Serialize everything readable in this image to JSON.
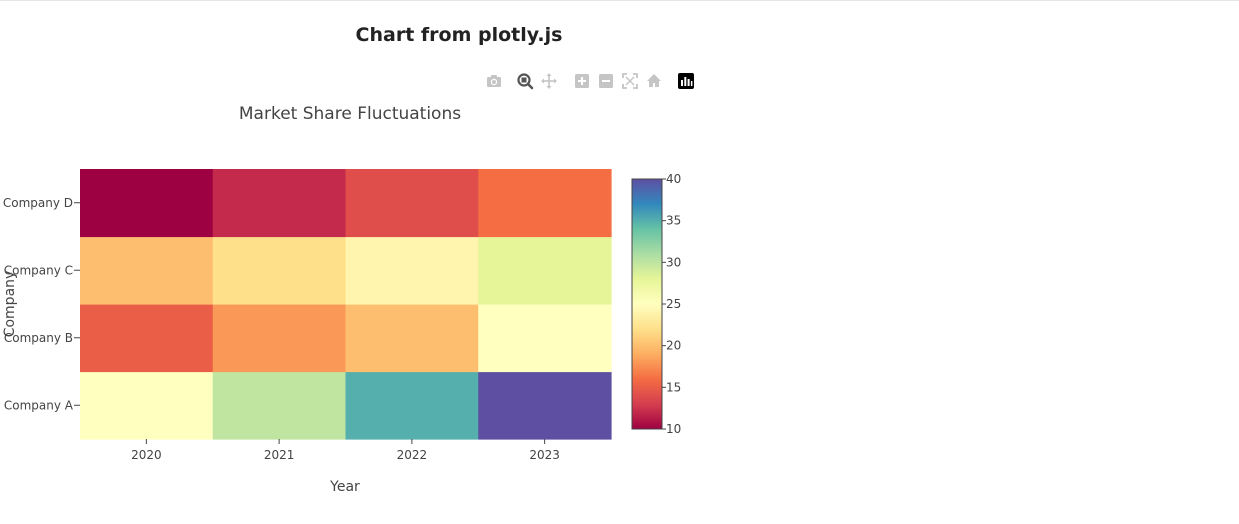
{
  "page": {
    "title": "Chart from plotly.js"
  },
  "modebar": {
    "buttons": [
      {
        "name": "camera-icon",
        "label": "Download plot as a png"
      },
      {
        "name": "zoom-icon",
        "label": "Zoom"
      },
      {
        "name": "pan-icon",
        "label": "Pan"
      },
      {
        "name": "zoom-in-icon",
        "label": "Zoom in"
      },
      {
        "name": "zoom-out-icon",
        "label": "Zoom out"
      },
      {
        "name": "autoscale-icon",
        "label": "Autoscale"
      },
      {
        "name": "reset-axes-icon",
        "label": "Reset axes"
      },
      {
        "name": "plotly-logo-icon",
        "label": "Produced with Plotly"
      }
    ]
  },
  "chart_data": {
    "type": "heatmap",
    "title": "Market Share Fluctuations",
    "xlabel": "Year",
    "ylabel": "Company",
    "x": [
      "2020",
      "2021",
      "2022",
      "2023"
    ],
    "y": [
      "Company A",
      "Company B",
      "Company C",
      "Company D"
    ],
    "z": [
      [
        25,
        30,
        35,
        40
      ],
      [
        15,
        18,
        20,
        25
      ],
      [
        20,
        22,
        24,
        28
      ],
      [
        10,
        12,
        14,
        16
      ]
    ],
    "colorscale": "Spectral",
    "zmin": 10,
    "zmax": 40,
    "colorbar": {
      "ticks": [
        "10",
        "15",
        "20",
        "25",
        "30",
        "35",
        "40"
      ]
    }
  }
}
